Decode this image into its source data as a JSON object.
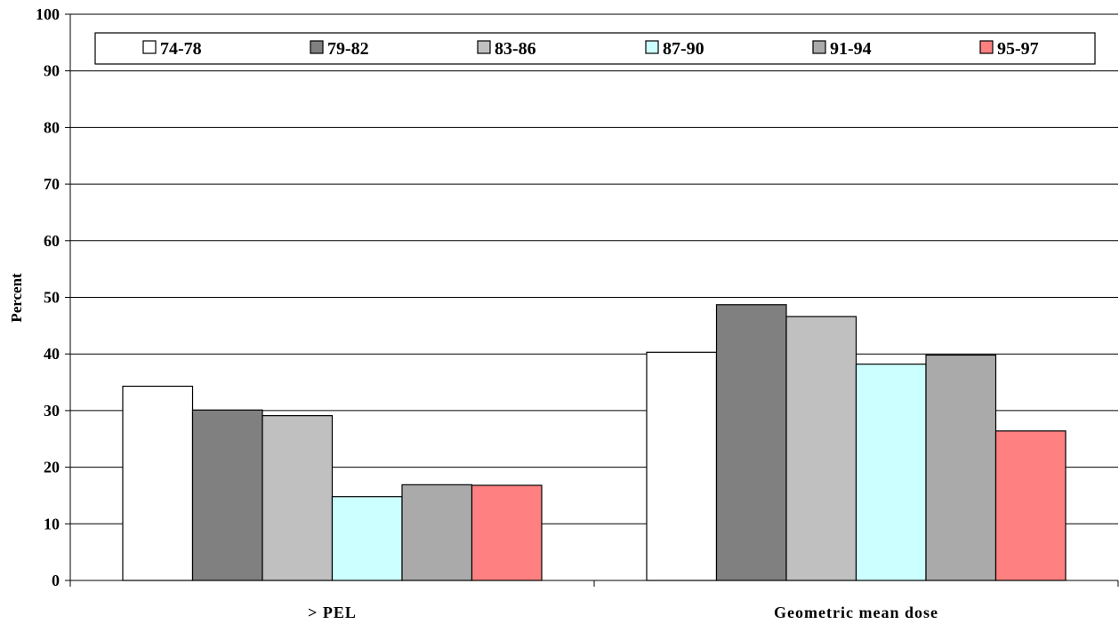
{
  "chart_data": {
    "type": "bar",
    "title": "",
    "xlabel": "",
    "ylabel": "Percent",
    "ylim": [
      0,
      100
    ],
    "yticks": [
      0,
      10,
      20,
      30,
      40,
      50,
      60,
      70,
      80,
      90,
      100
    ],
    "grid": true,
    "legend_position": "top",
    "categories": [
      "> PEL",
      "Geometric mean dose"
    ],
    "series": [
      {
        "name": "74-78",
        "color": "#ffffff",
        "values": [
          34.3,
          40.3
        ]
      },
      {
        "name": "79-82",
        "color": "#808080",
        "values": [
          30.1,
          48.7
        ]
      },
      {
        "name": "83-86",
        "color": "#c0c0c0",
        "values": [
          29.1,
          46.6
        ]
      },
      {
        "name": "87-90",
        "color": "#ccffff",
        "values": [
          14.8,
          38.2
        ]
      },
      {
        "name": "91-94",
        "color": "#aaaaaa",
        "values": [
          16.9,
          39.8
        ]
      },
      {
        "name": "95-97",
        "color": "#ff8080",
        "values": [
          16.8,
          26.4
        ]
      }
    ]
  }
}
